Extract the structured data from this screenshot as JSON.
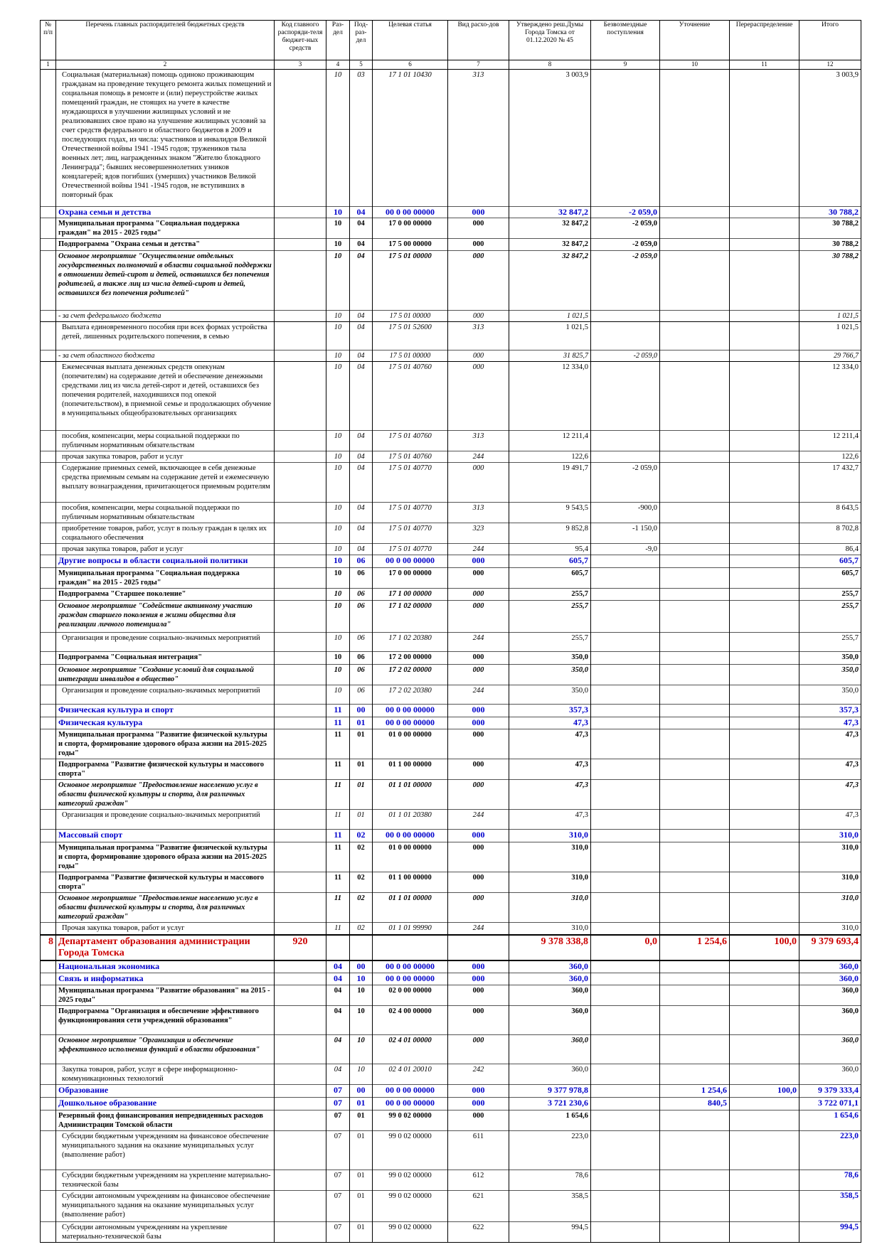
{
  "table": {
    "header": [
      "№ п/п",
      "Перечень главных распорядителей бюджетных средств",
      "Код главного распоряди-теля бюджет-ных средств",
      "Раз-дел",
      "Под-раз-дел",
      "Целевая статья",
      "Вид расхо-дов",
      "Утверждено реш.Думы Города Томска от 01.12.2020 № 45",
      "Безвозмездные поступления",
      "Уточнение",
      "Перераспределение",
      "Итого"
    ],
    "column_numbers": [
      "1",
      "2",
      "3",
      "4",
      "5",
      "6",
      "7",
      "8",
      "9",
      "10",
      "11",
      "12"
    ],
    "rows": [
      {
        "style": "detail",
        "cells": [
          null,
          "Социальная (материальная) помощь одиноко проживающим гражданам на проведение текущего ремонта жилых помещений и социальная помощь в ремонте и (или) переустройстве жилых помещений граждан, не стоящих на учете в качестве нуждающихся в улучшении жилищных условий и не реализовавших свое право на улучшение жилищных условий за счет средств федерального и областного бюджетов в 2009 и последующих годах, из числа: участников и инвалидов Великой Отечественной войны 1941 -1945 годов; тружеников тыла военных лет; лиц, награжденных знаком \"Жителю блокадного Ленинграда\"; бывших несовершеннолетних узников концлагерей; вдов погибших (умерших) участников Великой Отечественной войны 1941 -1945 годов, не вступивших в повторный брак",
          null,
          "10",
          "03",
          "17 1 01 10430",
          "313",
          "3 003,9",
          null,
          null,
          null,
          "3 003,9"
        ]
      },
      {
        "style": "section",
        "cells": [
          null,
          "Охрана семьи и детства",
          null,
          "10",
          "04",
          "00 0 00 00000",
          "000",
          "32 847,2",
          "-2 059,0",
          null,
          null,
          "30 788,2"
        ]
      },
      {
        "style": "bold",
        "cells": [
          null,
          "Муниципальная программа \"Социальная поддержка граждан\" на 2015 - 2025 годы\"",
          null,
          "10",
          "04",
          "17 0 00 00000",
          "000",
          "32 847,2",
          "-2 059,0",
          null,
          null,
          "30 788,2"
        ]
      },
      {
        "style": "bold",
        "cells": [
          null,
          "Подпрограмма \"Охрана семьи и детства\"",
          null,
          "10",
          "04",
          "17 5 00 00000",
          "000",
          "32 847,2",
          "-2 059,0",
          null,
          null,
          "30 788,2"
        ]
      },
      {
        "style": "bold-italic",
        "cells": [
          null,
          "Основное мероприятие \"Осуществление отдельных государственных полномочий в области социальной поддержки в отношении детей-сирот и детей, оставшихся без попечения родителей, а также лиц из числа детей-сирот и детей, оставшихся без попечения родителей\"",
          null,
          "10",
          "04",
          "17 5 01 00000",
          "000",
          "32 847,2",
          "-2 059,0",
          null,
          null,
          "30 788,2"
        ]
      },
      {
        "style": "fund",
        "cells": [
          null,
          "- за счет федерального бюджета",
          null,
          "10",
          "04",
          "17 5 01 00000",
          "000",
          "1 021,5",
          null,
          null,
          null,
          "1 021,5"
        ]
      },
      {
        "style": "detail",
        "cells": [
          null,
          "Выплата единовременного пособия при всех формах устройства детей, лишенных родительского попечения, в семью",
          null,
          "10",
          "04",
          "17 5 01 52600",
          "313",
          "1 021,5",
          null,
          null,
          null,
          "1 021,5"
        ]
      },
      {
        "style": "fund",
        "cells": [
          null,
          "- за счет областного бюджета",
          null,
          "10",
          "04",
          "17 5 01 00000",
          "000",
          "31 825,7",
          "-2 059,0",
          null,
          null,
          "29 766,7"
        ]
      },
      {
        "style": "detail",
        "cells": [
          null,
          "Ежемесячная выплата денежных средств опекунам (попечителям) на содержание детей и обеспечение денежными средствами лиц из числа детей-сирот и детей, оставшихся без попечения родителей, находившихся под опекой (попечительством), в приемной семье и продолжающих обучение в муниципальных общеобразовательных организациях",
          null,
          "10",
          "04",
          "17 5 01 40760",
          "000",
          "12 334,0",
          null,
          null,
          null,
          "12 334,0"
        ]
      },
      {
        "style": "detail",
        "cells": [
          null,
          "пособия, компенсации, меры социальной поддержки по публичным нормативным обязательствам",
          null,
          "10",
          "04",
          "17 5 01 40760",
          "313",
          "12 211,4",
          null,
          null,
          null,
          "12 211,4"
        ]
      },
      {
        "style": "detail",
        "cells": [
          null,
          "прочая закупка товаров, работ и услуг",
          null,
          "10",
          "04",
          "17 5 01 40760",
          "244",
          "122,6",
          null,
          null,
          null,
          "122,6"
        ]
      },
      {
        "style": "detail",
        "cells": [
          null,
          "Содержание приемных семей, включающее в себя денежные средства приемным семьям на содержание детей и ежемесячную выплату вознаграждения, причитающегося приемным родителям",
          null,
          "10",
          "04",
          "17 5 01 40770",
          "000",
          "19 491,7",
          "-2 059,0",
          null,
          null,
          "17 432,7"
        ]
      },
      {
        "style": "detail",
        "cells": [
          null,
          "пособия, компенсации, меры социальной поддержки по публичным нормативным обязательствам",
          null,
          "10",
          "04",
          "17 5 01 40770",
          "313",
          "9 543,5",
          "-900,0",
          null,
          null,
          "8 643,5"
        ]
      },
      {
        "style": "detail",
        "cells": [
          null,
          "приобретение товаров, работ, услуг в пользу граждан в целях их социального обеспечения",
          null,
          "10",
          "04",
          "17 5 01 40770",
          "323",
          "9 852,8",
          "-1 150,0",
          null,
          null,
          "8 702,8"
        ]
      },
      {
        "style": "detail",
        "cells": [
          null,
          "прочая закупка товаров, работ и услуг",
          null,
          "10",
          "04",
          "17 5 01 40770",
          "244",
          "95,4",
          "-9,0",
          null,
          null,
          "86,4"
        ]
      },
      {
        "style": "section",
        "cells": [
          null,
          "Другие вопросы в области социальной политики",
          null,
          "10",
          "06",
          "00 0 00 00000",
          "000",
          "605,7",
          null,
          null,
          null,
          "605,7"
        ]
      },
      {
        "style": "bold",
        "cells": [
          null,
          "Муниципальная программа \"Социальная поддержка граждан\" на 2015 - 2025 годы\"",
          null,
          "10",
          "06",
          "17 0 00 00000",
          "000",
          "605,7",
          null,
          null,
          null,
          "605,7"
        ]
      },
      {
        "style": "bold-codes-italic",
        "cells": [
          null,
          "Подпрограмма \"Старшее поколение\"",
          null,
          "10",
          "06",
          "17 1 00 00000",
          "000",
          "255,7",
          null,
          null,
          null,
          "255,7"
        ]
      },
      {
        "style": "bold-italic",
        "cells": [
          null,
          "Основное мероприятие \"Содействие активному участию граждан старшего поколения в жизни общества для реализации личного потенциала\"",
          null,
          "10",
          "06",
          "17 1 02 00000",
          "000",
          "255,7",
          null,
          null,
          null,
          "255,7"
        ]
      },
      {
        "style": "detail",
        "cells": [
          null,
          "Организация и проведение социально-значимых мероприятий",
          null,
          "10",
          "06",
          "17 1 02 20380",
          "244",
          "255,7",
          null,
          null,
          null,
          "255,7"
        ]
      },
      {
        "style": "bold",
        "cells": [
          null,
          "Подпрограмма \"Социальная интеграция\"",
          null,
          "10",
          "06",
          "17 2 00 00000",
          "000",
          "350,0",
          null,
          null,
          null,
          "350,0"
        ]
      },
      {
        "style": "bold-italic",
        "cells": [
          null,
          "Основное мероприятие \"Создание условий для социальной интеграции инвалидов в общество\"",
          null,
          "10",
          "06",
          "17 2 02 00000",
          "000",
          "350,0",
          null,
          null,
          null,
          "350,0"
        ]
      },
      {
        "style": "detail",
        "cells": [
          null,
          "Организация и проведение социально-значимых мероприятий",
          null,
          "10",
          "06",
          "17 2 02 20380",
          "244",
          "350,0",
          null,
          null,
          null,
          "350,0"
        ]
      },
      {
        "style": "section",
        "cells": [
          null,
          "Физическая культура и спорт",
          null,
          "11",
          "00",
          "00 0 00 00000",
          "000",
          "357,3",
          null,
          null,
          null,
          "357,3"
        ]
      },
      {
        "style": "section",
        "cells": [
          null,
          "Физическая культура",
          null,
          "11",
          "01",
          "00 0 00 00000",
          "000",
          "47,3",
          null,
          null,
          null,
          "47,3"
        ]
      },
      {
        "style": "bold",
        "cells": [
          null,
          "Муниципальная программа \"Развитие физической культуры и спорта, формирование здорового образа жизни на 2015-2025 годы\"",
          null,
          "11",
          "01",
          "01 0 00 00000",
          "000",
          "47,3",
          null,
          null,
          null,
          "47,3"
        ]
      },
      {
        "style": "bold",
        "cells": [
          null,
          "Подпрограмма \"Развитие физической культуры и массового спорта\"",
          null,
          "11",
          "01",
          "01 1 00 00000",
          "000",
          "47,3",
          null,
          null,
          null,
          "47,3"
        ]
      },
      {
        "style": "bold-italic",
        "cells": [
          null,
          "Основное мероприятие \"Предоставление населению услуг в области физической культуры и спорта, для различных категорий граждан\"",
          null,
          "11",
          "01",
          "01 1 01 00000",
          "000",
          "47,3",
          null,
          null,
          null,
          "47,3"
        ]
      },
      {
        "style": "detail",
        "cells": [
          null,
          "Организация и проведение социально-значимых мероприятий",
          null,
          "11",
          "01",
          "01 1 01 20380",
          "244",
          "47,3",
          null,
          null,
          null,
          "47,3"
        ]
      },
      {
        "style": "section",
        "cells": [
          null,
          "Массовый спорт",
          null,
          "11",
          "02",
          "00 0 00 00000",
          "000",
          "310,0",
          null,
          null,
          null,
          "310,0"
        ]
      },
      {
        "style": "bold",
        "cells": [
          null,
          "Муниципальная программа \"Развитие физической культуры и спорта, формирование здорового образа жизни на 2015-2025 годы\"",
          null,
          "11",
          "02",
          "01 0 00 00000",
          "000",
          "310,0",
          null,
          null,
          null,
          "310,0"
        ]
      },
      {
        "style": "bold",
        "cells": [
          null,
          "Подпрограмма \"Развитие физической культуры и массового спорта\"",
          null,
          "11",
          "02",
          "01 1 00 00000",
          "000",
          "310,0",
          null,
          null,
          null,
          "310,0"
        ]
      },
      {
        "style": "bold-italic",
        "cells": [
          null,
          "Основное мероприятие \"Предоставление населению услуг в области физической культуры и спорта, для различных категорий граждан\"",
          null,
          "11",
          "02",
          "01 1 01 00000",
          "000",
          "310,0",
          null,
          null,
          null,
          "310,0"
        ]
      },
      {
        "style": "detail",
        "cells": [
          null,
          "Прочая закупка товаров, работ и услуг",
          null,
          "11",
          "02",
          "01 1 01 99990",
          "244",
          "310,0",
          null,
          null,
          null,
          "310,0"
        ]
      },
      {
        "style": "dept",
        "cells": [
          "8",
          "Департамент образования администрации Города Томска",
          "920",
          null,
          null,
          null,
          null,
          "9 378 338,8",
          "0,0",
          "1 254,6",
          "100,0",
          "9 379 693,4"
        ]
      },
      {
        "style": "section",
        "cells": [
          null,
          "Национальная экономика",
          null,
          "04",
          "00",
          "00 0 00 00000",
          "000",
          "360,0",
          null,
          null,
          null,
          "360,0"
        ]
      },
      {
        "style": "section",
        "cells": [
          null,
          "Связь и информатика",
          null,
          "04",
          "10",
          "00 0 00 00000",
          "000",
          "360,0",
          null,
          null,
          null,
          "360,0"
        ]
      },
      {
        "style": "bold",
        "cells": [
          null,
          "Муниципальная программа \"Развитие образования\" на 2015 - 2025 годы\"",
          null,
          "04",
          "10",
          "02 0 00 00000",
          "000",
          "360,0",
          null,
          null,
          null,
          "360,0"
        ]
      },
      {
        "style": "bold",
        "cells": [
          null,
          "Подпрограмма \"Организация и обеспечение эффективного функционирования сети учреждений образования\"",
          null,
          "04",
          "10",
          "02 4 00 00000",
          "000",
          "360,0",
          null,
          null,
          null,
          "360,0"
        ]
      },
      {
        "style": "bold-italic",
        "cells": [
          null,
          "Основное мероприятие \"Организация и обеспечение эффективного исполнения функций в области образования\"",
          null,
          "04",
          "10",
          "02 4 01 00000",
          "000",
          "360,0",
          null,
          null,
          null,
          "360,0"
        ]
      },
      {
        "style": "detail",
        "cells": [
          null,
          "Закупка товаров, работ, услуг в сфере информационно-коммуникационных технологий",
          null,
          "04",
          "10",
          "02 4 01 20010",
          "242",
          "360,0",
          null,
          null,
          null,
          "360,0"
        ]
      },
      {
        "style": "section",
        "cells": [
          null,
          "Образование",
          null,
          "07",
          "00",
          "00 0 00 00000",
          "000",
          "9 377 978,8",
          null,
          "1 254,6",
          "100,0",
          "9 379 333,4"
        ]
      },
      {
        "style": "section",
        "cells": [
          null,
          "Дошкольное образование",
          null,
          "07",
          "01",
          "00 0 00 00000",
          "000",
          "3 721 230,6",
          null,
          "840,5",
          null,
          "3 722 071,1"
        ]
      },
      {
        "style": "bold-blue-total",
        "cells": [
          null,
          "Резервный фонд финансирования непредвиденных расходов Администрации Томской области",
          null,
          "07",
          "01",
          "99 0 02 00000",
          "000",
          "1 654,6",
          null,
          null,
          null,
          "1 654,6"
        ]
      },
      {
        "style": "detail-blue-total",
        "cells": [
          null,
          "Субсидии бюджетным учреждениям на финансовое обеспечение муниципального задания на оказание муниципальных услуг (выполнение работ)",
          null,
          "07",
          "01",
          "99 0 02 00000",
          "611",
          "223,0",
          null,
          null,
          null,
          "223,0"
        ]
      },
      {
        "style": "detail-blue-total",
        "cells": [
          null,
          "Субсидии бюджетным учреждениям на укрепление материально-технической базы",
          null,
          "07",
          "01",
          "99 0 02 00000",
          "612",
          "78,6",
          null,
          null,
          null,
          "78,6"
        ]
      },
      {
        "style": "detail-blue-total",
        "cells": [
          null,
          "Субсидии автономным учреждениям на финансовое обеспечение муниципального задания на оказание муниципальных услуг (выполнение работ)",
          null,
          "07",
          "01",
          "99 0 02 00000",
          "621",
          "358,5",
          null,
          null,
          null,
          "358,5"
        ]
      },
      {
        "style": "detail-blue-total",
        "cells": [
          null,
          "Субсидии автономным учреждениям на укрепление материально-технической базы",
          null,
          "07",
          "01",
          "99 0 02 00000",
          "622",
          "994,5",
          null,
          null,
          null,
          "994,5"
        ]
      }
    ]
  }
}
